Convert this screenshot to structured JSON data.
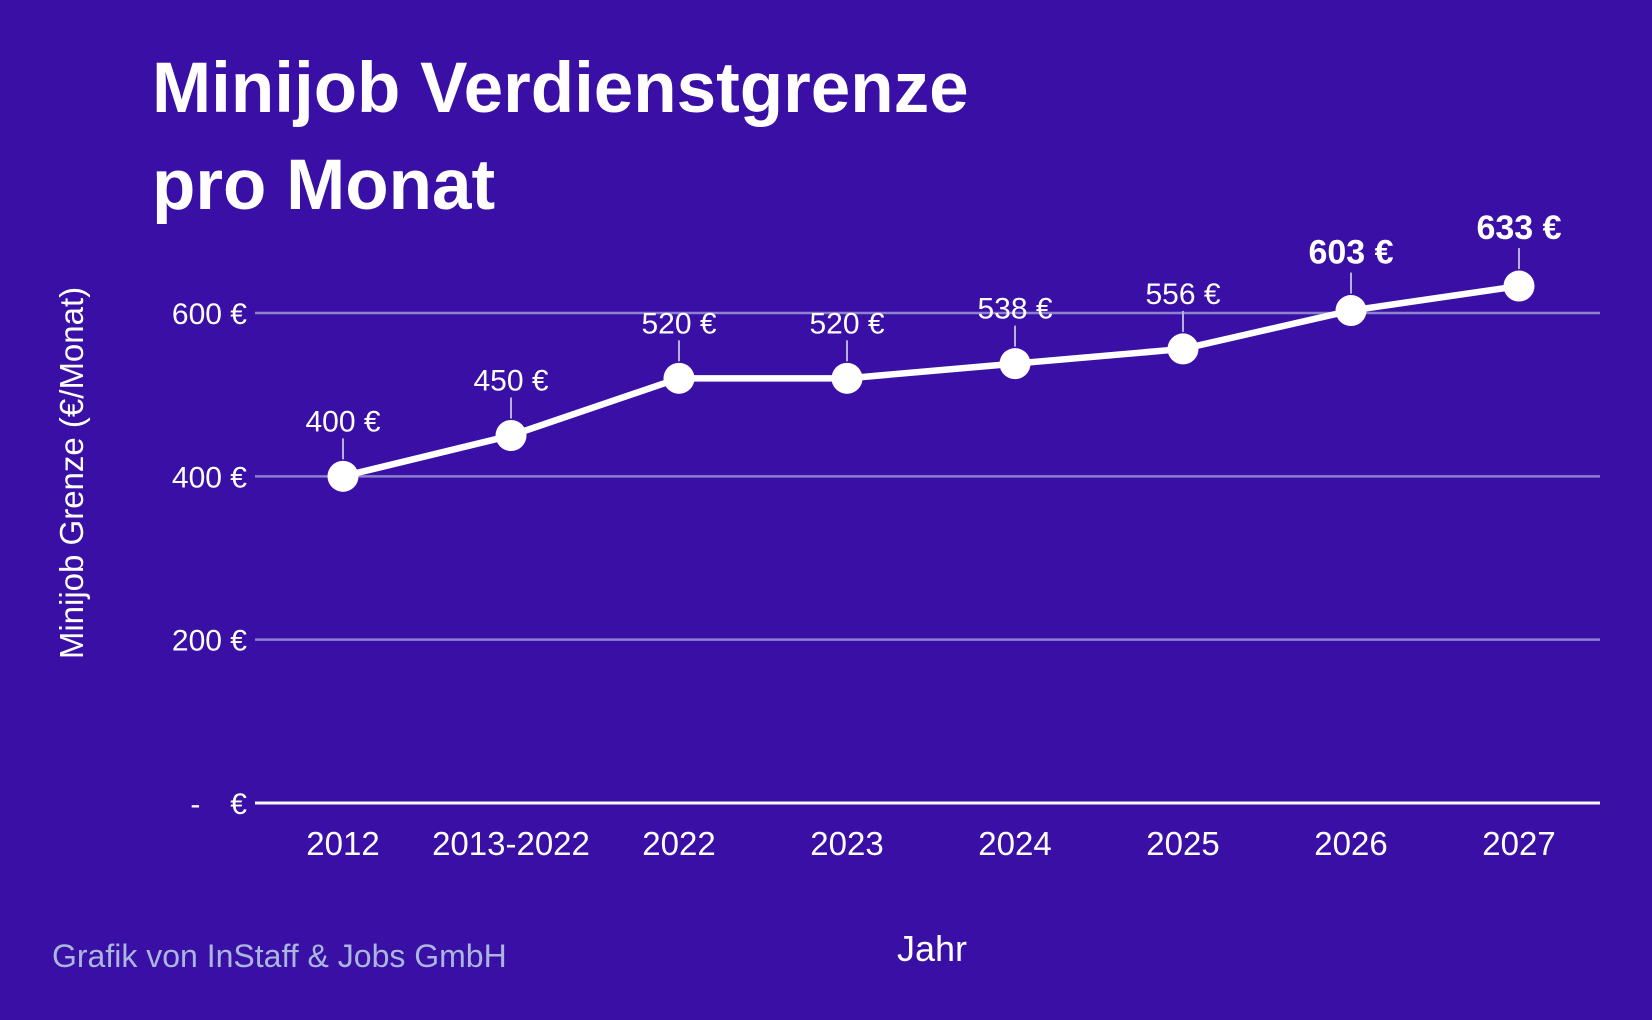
{
  "header": {
    "title_lines": [
      "Minijob Verdienstgrenze",
      "pro Monat"
    ]
  },
  "footer": {
    "credit": "Grafik von InStaff & Jobs GmbH"
  },
  "colors": {
    "background": "#3a0fa5",
    "text": "#ffffff",
    "line": "#ffffff",
    "marker": "#ffffff",
    "grid": "#8c82cf",
    "zero_axis": "#f8f8f8",
    "connector": "#b9b0e2",
    "credit": "#a9b6de"
  },
  "chart_data": {
    "type": "line",
    "title": "Minijob Verdienstgrenze pro Monat",
    "xlabel": "Jahr",
    "ylabel": "Minijob Grenze (€/Monat)",
    "categories": [
      "2012",
      "2013-2022",
      "2022",
      "2023",
      "2024",
      "2025",
      "2026",
      "2027"
    ],
    "series": [
      {
        "name": "Minijob Grenze",
        "values": [
          400,
          450,
          520,
          520,
          538,
          556,
          603,
          633
        ]
      }
    ],
    "point_labels": [
      "400 €",
      "450 €",
      "520 €",
      "520 €",
      "538 €",
      "556 €",
      "603 €",
      "633 €"
    ],
    "point_label_bold": [
      false,
      false,
      false,
      false,
      false,
      false,
      true,
      true
    ],
    "yticks": [
      {
        "value": 600,
        "label": "600 €"
      },
      {
        "value": 400,
        "label": "400 €"
      },
      {
        "value": 200,
        "label": "200 €"
      },
      {
        "value": 0,
        "label": "-  €"
      }
    ],
    "ylim": [
      0,
      650
    ],
    "grid": true,
    "legend_position": "none"
  }
}
